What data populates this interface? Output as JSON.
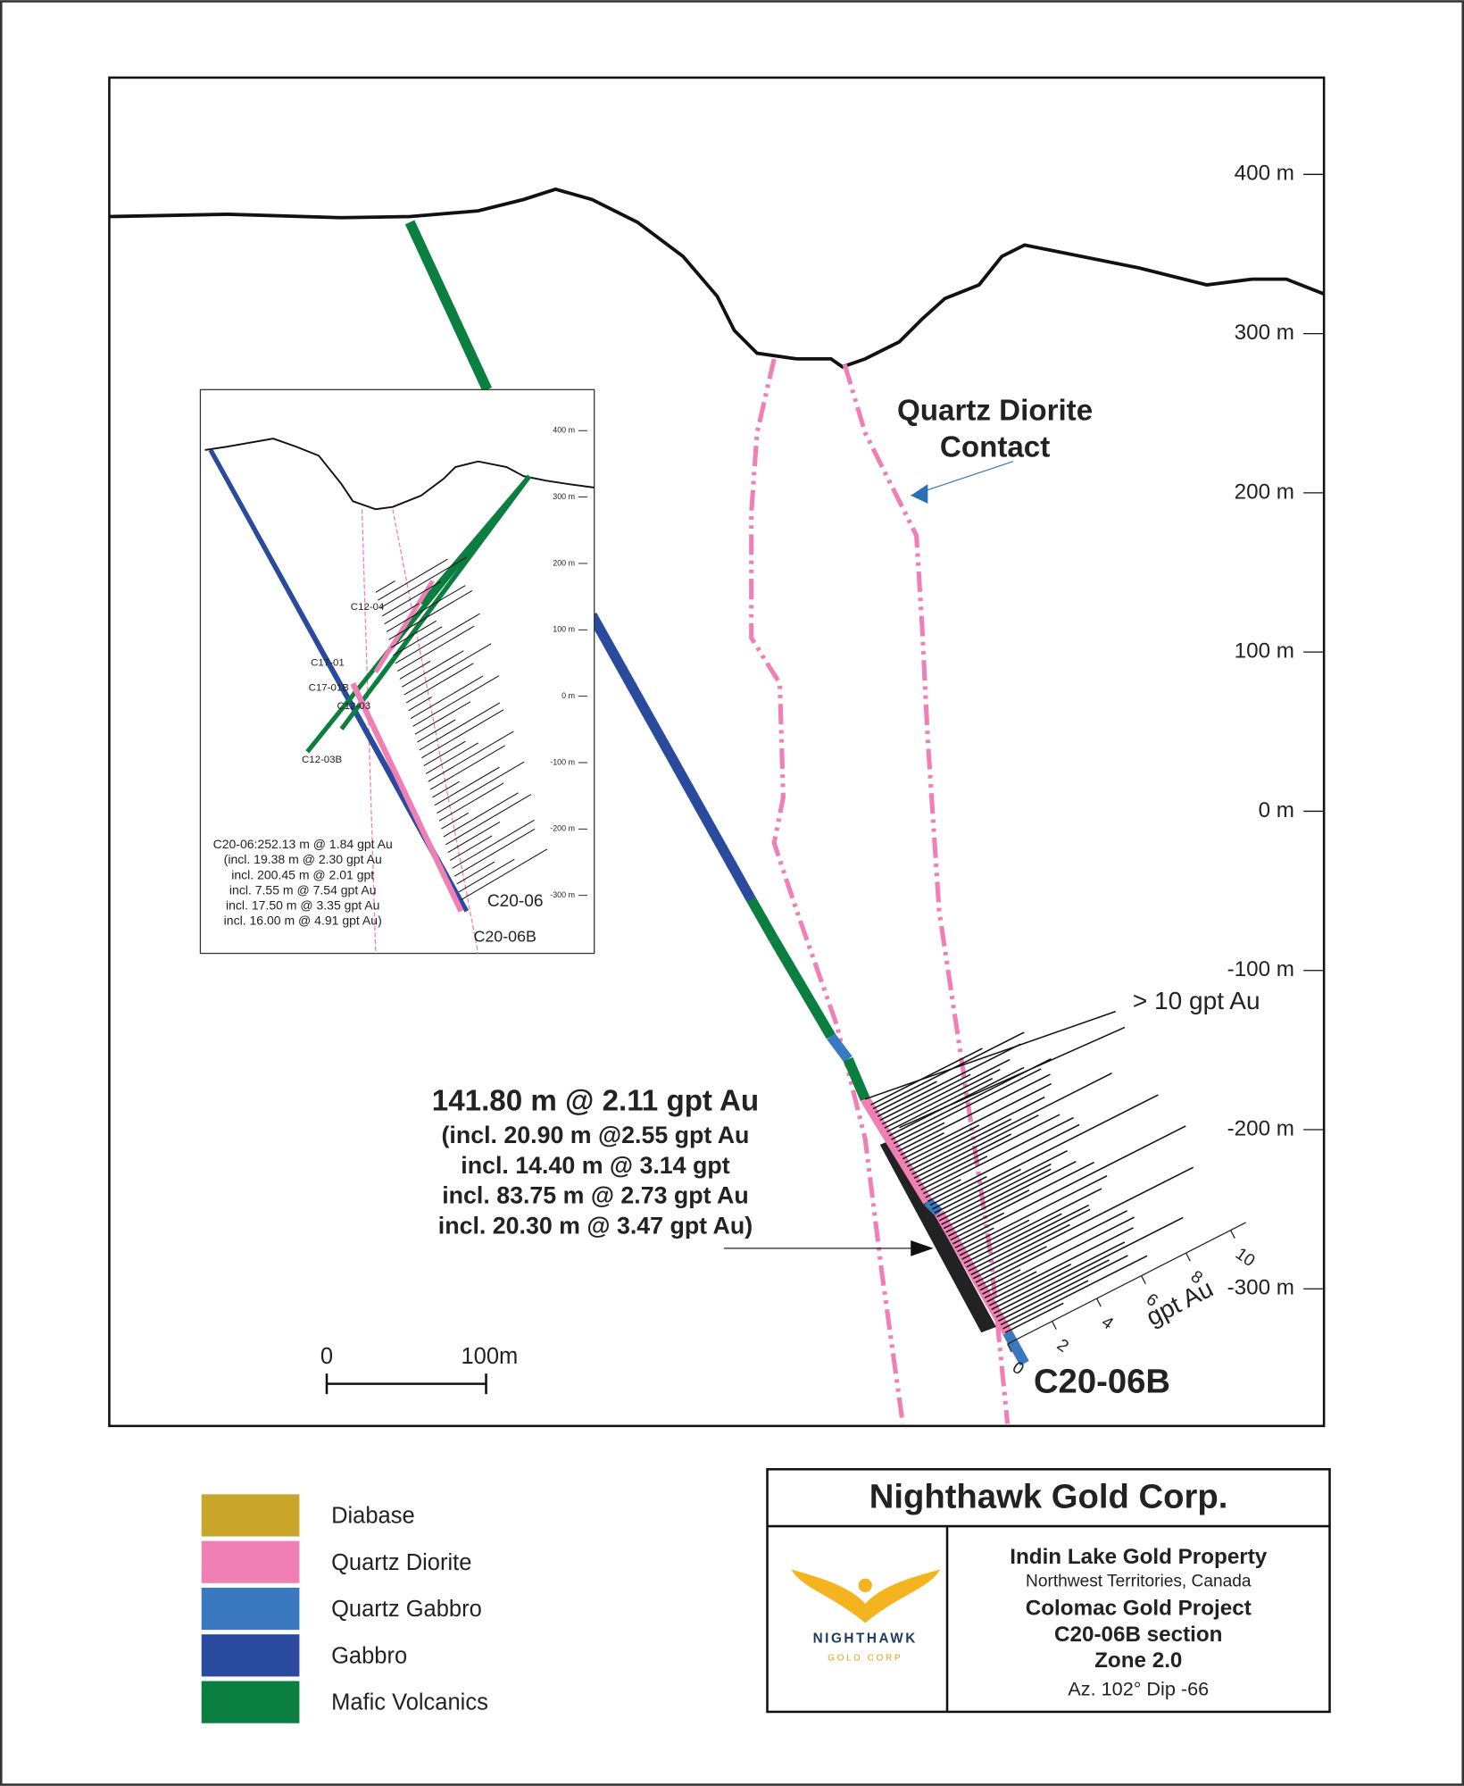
{
  "section": {
    "elevation_labels": [
      "400 m",
      "300 m",
      "200 m",
      "100 m",
      "0 m",
      "-100 m",
      "-200 m",
      "-300 m"
    ],
    "contact_label": [
      "Quartz Diorite",
      "Contact"
    ],
    "threshold_label": "> 10 gpt Au",
    "intercept": {
      "headline": "141.80 m @ 2.11 gpt Au",
      "lines": [
        "(incl. 20.90 m @2.55 gpt Au",
        "incl. 14.40 m @ 3.14 gpt",
        "incl. 83.75 m @ 2.73 gpt Au",
        "incl. 20.30 m @ 3.47 gpt Au)"
      ]
    },
    "hole_label": "C20-06B",
    "grade_scale": {
      "ticks": [
        "0",
        "2",
        "4",
        "6",
        "8",
        "10"
      ],
      "unit": "gpt Au"
    }
  },
  "scale_bar": {
    "start": "0",
    "end": "100m"
  },
  "inset": {
    "elevation_labels": [
      "400 m",
      "300 m",
      "200 m",
      "100 m",
      "0 m",
      "-100 m",
      "-200 m",
      "-300 m"
    ],
    "hole_labels": [
      "C12-04",
      "C17-01",
      "C17-01B",
      "C12-03",
      "C12-03B",
      "C20-06",
      "C20-06B"
    ],
    "summary": [
      "C20-06:252.13 m @ 1.84 gpt Au",
      "(incl. 19.38 m @ 2.30 gpt Au",
      "incl. 200.45 m @ 2.01 gpt",
      "incl. 7.55 m @ 7.54 gpt Au",
      "incl. 17.50 m @ 3.35 gpt Au",
      "incl. 16.00 m @ 4.91 gpt Au)"
    ]
  },
  "legend": [
    {
      "label": "Diabase",
      "color": "#c9a52a"
    },
    {
      "label": "Quartz Diorite",
      "color": "#f07fb4"
    },
    {
      "label": "Quartz Gabbro",
      "color": "#3a78c0"
    },
    {
      "label": "Gabbro",
      "color": "#2a4a9e"
    },
    {
      "label": "Mafic Volcanics",
      "color": "#0a7f3f"
    }
  ],
  "title_block": {
    "company": "Nighthawk Gold Corp.",
    "logo": {
      "name": "NIGHTHAWK",
      "subtitle": "GOLD CORP"
    },
    "lines": [
      "Indin Lake Gold Property",
      "Northwest Territories, Canada",
      "Colomac Gold Project",
      "C20-06B section",
      "Zone 2.0",
      "Az. 102° Dip -66"
    ]
  }
}
